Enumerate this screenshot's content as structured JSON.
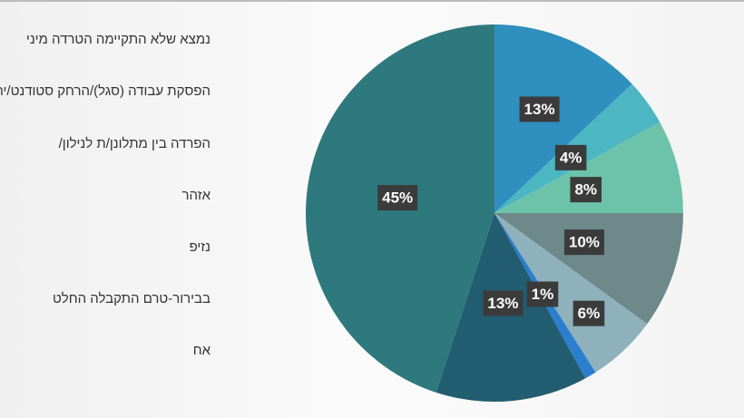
{
  "chart_data": {
    "type": "pie",
    "categories": [
      "נמצא שלא התקיימה הטרדה מיני",
      "הפסקת עבודה (סגל)/הרחק סטודנט/ית מלימודים",
      "הפרדה בין מתלונן/ת לנילון/",
      "אזהר",
      "נזיפ",
      "בבירור-טרם התקבלה החלט",
      "אח",
      null
    ],
    "values": [
      13,
      4,
      8,
      10,
      6,
      1,
      13,
      45
    ],
    "value_labels": [
      "13%",
      "4%",
      "8%",
      "10%",
      "6%",
      "1%",
      "13%",
      "45%"
    ],
    "colors": [
      "#2f8fbf",
      "#4cb6c3",
      "#6cc3a9",
      "#6e8989",
      "#8eb1bc",
      "#2b7fce",
      "#225d71",
      "#2e797e"
    ]
  }
}
